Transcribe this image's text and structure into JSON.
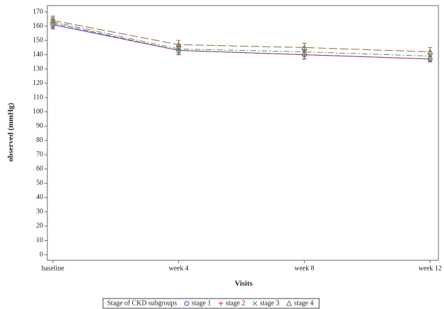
{
  "chart_data": {
    "type": "line",
    "categories": [
      "baseline",
      "week 4",
      "week 8",
      "week 12"
    ],
    "x_label": "Visits",
    "y_label": "observed (mmHg)",
    "legend_title": "Stage of CKD subgroups",
    "legend": "bottom",
    "ylim": [
      0,
      170
    ],
    "yticks": [
      0,
      10,
      20,
      30,
      40,
      50,
      60,
      70,
      80,
      90,
      100,
      110,
      120,
      130,
      140,
      150,
      160,
      170
    ],
    "series": [
      {
        "name": "stage 1",
        "color": "#3b3bc8",
        "marker": "circle",
        "dash": "",
        "values": [
          161,
          143,
          140,
          137
        ],
        "errors": [
          3,
          3,
          3,
          2
        ]
      },
      {
        "name": "stage 2",
        "color": "#c83b3b",
        "marker": "plus",
        "dash": "8 3",
        "values": [
          162,
          143,
          140,
          137
        ],
        "errors": [
          3,
          3,
          3,
          2
        ]
      },
      {
        "name": "stage 3",
        "color": "#2f9a6a",
        "marker": "x",
        "dash": "8 3 2 3",
        "values": [
          163,
          144,
          142,
          139
        ],
        "errors": [
          3,
          3,
          3,
          3
        ]
      },
      {
        "name": "stage 4",
        "color": "#8a6a3a",
        "marker": "triangle",
        "dash": "12 4",
        "values": [
          164,
          147,
          145,
          142
        ],
        "errors": [
          3,
          3,
          3,
          3
        ]
      }
    ]
  }
}
